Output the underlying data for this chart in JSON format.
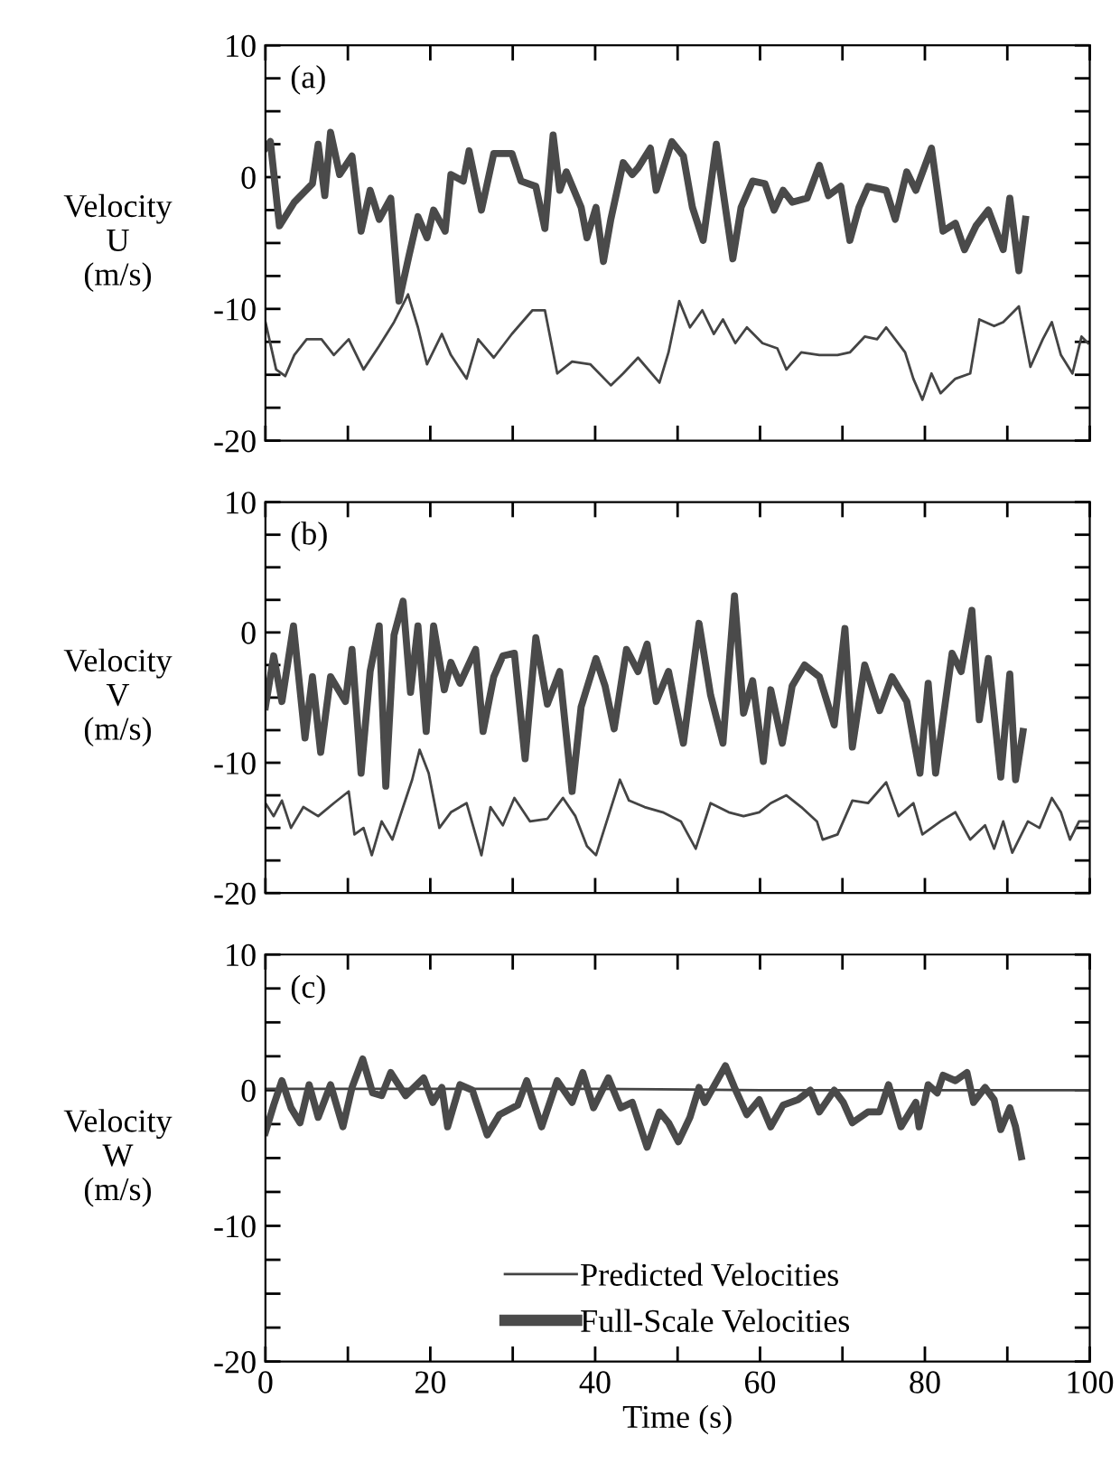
{
  "chart_data": [
    {
      "type": "line",
      "ylabel": "Velocity\nU\n(m/s)",
      "annotations": [
        "(a)"
      ],
      "xlim": [
        0,
        100
      ],
      "ylim": [
        -20,
        10
      ],
      "xticks": [
        0,
        {
          "value": 10,
          "label": null
        },
        20,
        {
          "value": 30,
          "label": null
        },
        40,
        {
          "value": 50,
          "label": null
        },
        60,
        {
          "value": 70,
          "label": null
        },
        80,
        {
          "value": 90,
          "label": null
        },
        100
      ],
      "yticks": [
        -20,
        {
          "value": -17.5,
          "label": null
        },
        {
          "value": -15,
          "label": null
        },
        {
          "value": -12.5,
          "label": null
        },
        -10,
        {
          "value": -7.5,
          "label": null
        },
        {
          "value": -5,
          "label": null
        },
        {
          "value": -2.5,
          "label": null
        },
        0,
        {
          "value": 2.5,
          "label": null
        },
        {
          "value": 5,
          "label": null
        },
        {
          "value": 7.5,
          "label": null
        },
        10
      ],
      "tick_labels": "y",
      "grid": false,
      "legend": false,
      "series": [
        {
          "color": "#444444",
          "line_style": "solid",
          "x": [
            0,
            1.3,
            2.4,
            3.5,
            5.0,
            6.8,
            8.3,
            10.1,
            11.9,
            13.8,
            15.6,
            17.3,
            18.5,
            19.6,
            21.4,
            22.5,
            24.4,
            25.8,
            27.7,
            29.9,
            32.4,
            33.9,
            35.4,
            37.2,
            39.4,
            41.9,
            43.4,
            45.2,
            47.8,
            48.9,
            50.2,
            51.5,
            53.0,
            54.4,
            55.5,
            57.0,
            58.4,
            60.3,
            62.1,
            63.2,
            65.0,
            67.2,
            69.4,
            70.9,
            72.7,
            74.2,
            75.3,
            77.6,
            78.6,
            79.7,
            80.8,
            81.9,
            83.7,
            85.5,
            86.6,
            88.4,
            89.5,
            91.4,
            92.8,
            94.3,
            95.4,
            96.5,
            97.9,
            99.0,
            99.8
          ],
          "values": [
            -11.0,
            -14.6,
            -15.1,
            -13.5,
            -12.3,
            -12.3,
            -13.5,
            -12.3,
            -14.6,
            -12.8,
            -11.0,
            -8.9,
            -11.4,
            -14.2,
            -11.9,
            -13.5,
            -15.3,
            -12.3,
            -13.7,
            -11.9,
            -10.1,
            -10.1,
            -14.9,
            -14.0,
            -14.2,
            -15.8,
            -14.9,
            -13.7,
            -15.6,
            -13.3,
            -9.4,
            -11.4,
            -10.1,
            -11.9,
            -10.8,
            -12.6,
            -11.4,
            -12.6,
            -13.0,
            -14.6,
            -13.3,
            -13.5,
            -13.5,
            -13.3,
            -12.1,
            -12.3,
            -11.4,
            -13.3,
            -15.3,
            -16.9,
            -14.9,
            -16.4,
            -15.3,
            -14.9,
            -10.8,
            -11.3,
            -11.0,
            -9.8,
            -14.4,
            -12.3,
            -11.0,
            -13.5,
            -14.9,
            -12.1,
            -12.6
          ]
        },
        {
          "color": "#4a4a4a",
          "line_style": "solid",
          "x": [
            0,
            0.6,
            1.7,
            3.5,
            5.7,
            6.4,
            7.2,
            7.9,
            9.0,
            10.5,
            11.6,
            12.7,
            13.8,
            15.2,
            16.2,
            17.4,
            18.5,
            19.6,
            20.4,
            21.8,
            22.5,
            24.0,
            24.7,
            26.2,
            27.7,
            29.9,
            31.0,
            32.8,
            33.9,
            34.9,
            35.7,
            36.5,
            38.3,
            39.0,
            40.1,
            41.0,
            41.9,
            43.4,
            44.5,
            45.2,
            46.7,
            47.4,
            49.3,
            50.7,
            51.8,
            53.1,
            54.7,
            55.5,
            56.7,
            57.7,
            59.1,
            60.6,
            61.7,
            62.8,
            63.9,
            65.7,
            67.2,
            68.3,
            69.8,
            70.9,
            72.0,
            73.1,
            75.3,
            76.4,
            77.8,
            78.9,
            80.8,
            82.2,
            83.7,
            84.8,
            86.2,
            87.7,
            89.5,
            90.3,
            91.4,
            92.2
          ],
          "values": [
            2.2,
            2.7,
            -3.7,
            -1.9,
            -0.5,
            2.5,
            -1.4,
            3.4,
            0.2,
            1.6,
            -4.1,
            -1.0,
            -3.2,
            -1.6,
            -9.4,
            -6.0,
            -3.0,
            -4.6,
            -2.5,
            -4.1,
            0.2,
            -0.3,
            2.0,
            -2.5,
            1.8,
            1.8,
            -0.3,
            -0.7,
            -3.9,
            3.2,
            -1.0,
            0.4,
            -2.3,
            -4.6,
            -2.3,
            -6.4,
            -3.2,
            1.1,
            0.2,
            0.7,
            2.2,
            -1.0,
            2.7,
            1.6,
            -2.3,
            -4.8,
            2.5,
            -1.0,
            -6.2,
            -2.3,
            -0.3,
            -0.5,
            -2.5,
            -1.0,
            -1.9,
            -1.6,
            0.9,
            -1.4,
            -0.7,
            -4.8,
            -2.3,
            -0.7,
            -1.0,
            -3.2,
            0.4,
            -1.0,
            2.2,
            -4.1,
            -3.5,
            -5.5,
            -3.7,
            -2.5,
            -5.5,
            -1.6,
            -7.1,
            -3.2
          ]
        }
      ]
    },
    {
      "type": "line",
      "ylabel": "Velocity\nV\n(m/s)",
      "annotations": [
        "(b)"
      ],
      "xlim": [
        0,
        100
      ],
      "ylim": [
        -20,
        10
      ],
      "xticks": [
        0,
        {
          "value": 10,
          "label": null
        },
        20,
        {
          "value": 30,
          "label": null
        },
        40,
        {
          "value": 50,
          "label": null
        },
        60,
        {
          "value": 70,
          "label": null
        },
        80,
        {
          "value": 90,
          "label": null
        },
        100
      ],
      "yticks": [
        -20,
        {
          "value": -17.5,
          "label": null
        },
        {
          "value": -15,
          "label": null
        },
        {
          "value": -12.5,
          "label": null
        },
        -10,
        {
          "value": -7.5,
          "label": null
        },
        {
          "value": -5,
          "label": null
        },
        {
          "value": -2.5,
          "label": null
        },
        0,
        {
          "value": 2.5,
          "label": null
        },
        {
          "value": 5,
          "label": null
        },
        {
          "value": 7.5,
          "label": null
        },
        10
      ],
      "tick_labels": "y",
      "grid": false,
      "legend": false,
      "series": [
        {
          "color": "#444444",
          "line_style": "solid",
          "x": [
            0,
            1.0,
            2.0,
            3.1,
            4.6,
            6.4,
            8.3,
            10.1,
            10.8,
            11.9,
            12.9,
            14.1,
            15.4,
            16.7,
            17.8,
            18.7,
            19.8,
            21.1,
            22.5,
            24.4,
            26.2,
            27.3,
            28.8,
            30.2,
            32.1,
            34.2,
            36.1,
            37.6,
            39.0,
            40.1,
            41.6,
            43.0,
            44.1,
            46.0,
            48.2,
            50.4,
            52.2,
            54.0,
            56.2,
            58.0,
            59.9,
            61.3,
            63.2,
            65.0,
            66.9,
            67.6,
            69.4,
            71.2,
            73.1,
            75.3,
            76.8,
            78.6,
            79.7,
            81.9,
            83.7,
            85.5,
            87.3,
            88.4,
            89.5,
            90.6,
            92.5,
            93.9,
            95.4,
            96.5,
            97.6,
            98.7,
            99.8
          ],
          "values": [
            -13.1,
            -14.1,
            -12.9,
            -15.0,
            -13.4,
            -14.1,
            -13.1,
            -12.2,
            -15.5,
            -15.0,
            -17.1,
            -14.5,
            -15.9,
            -13.4,
            -11.3,
            -9.0,
            -10.8,
            -15.0,
            -13.8,
            -13.1,
            -17.1,
            -13.4,
            -14.8,
            -12.7,
            -14.5,
            -14.3,
            -12.7,
            -14.1,
            -16.4,
            -17.1,
            -14.1,
            -11.3,
            -12.9,
            -13.4,
            -13.8,
            -14.5,
            -16.6,
            -13.1,
            -13.8,
            -14.1,
            -13.8,
            -13.1,
            -12.5,
            -13.4,
            -14.5,
            -15.9,
            -15.5,
            -12.9,
            -13.1,
            -11.5,
            -14.1,
            -13.1,
            -15.5,
            -14.5,
            -13.8,
            -15.9,
            -14.8,
            -16.6,
            -14.5,
            -16.9,
            -14.5,
            -15.0,
            -12.7,
            -13.8,
            -15.9,
            -14.5,
            -14.5
          ]
        },
        {
          "color": "#4a4a4a",
          "line_style": "solid",
          "x": [
            0,
            1.0,
            2.0,
            3.4,
            4.8,
            5.7,
            6.7,
            7.9,
            9.7,
            10.5,
            11.6,
            12.7,
            13.8,
            14.6,
            15.6,
            16.7,
            17.6,
            18.5,
            19.5,
            20.4,
            21.7,
            22.5,
            23.6,
            25.5,
            26.4,
            27.7,
            28.8,
            30.2,
            31.5,
            32.8,
            34.2,
            35.7,
            37.2,
            38.3,
            40.1,
            41.2,
            42.3,
            43.8,
            45.2,
            46.3,
            47.4,
            48.9,
            50.7,
            52.6,
            54.0,
            55.5,
            56.9,
            58.0,
            59.1,
            60.4,
            61.3,
            62.7,
            63.9,
            65.4,
            67.2,
            69.0,
            70.3,
            71.2,
            72.7,
            74.5,
            76.0,
            77.8,
            79.4,
            80.4,
            81.3,
            83.3,
            84.4,
            85.7,
            86.6,
            87.7,
            89.2,
            90.3,
            91.0,
            91.9
          ],
          "values": [
            -5.7,
            -1.8,
            -5.3,
            0.5,
            -8.1,
            -3.4,
            -9.2,
            -3.4,
            -5.3,
            -1.3,
            -10.8,
            -3.0,
            0.5,
            -11.8,
            -0.2,
            2.4,
            -4.6,
            0.5,
            -7.6,
            0.5,
            -4.4,
            -2.3,
            -3.9,
            -1.3,
            -7.6,
            -3.4,
            -1.8,
            -1.6,
            -9.7,
            -0.4,
            -5.5,
            -3.0,
            -12.2,
            -5.7,
            -2.0,
            -4.1,
            -7.4,
            -1.3,
            -3.0,
            -0.9,
            -5.3,
            -3.0,
            -8.5,
            0.7,
            -4.8,
            -8.5,
            2.8,
            -6.2,
            -3.7,
            -9.9,
            -4.4,
            -8.5,
            -4.1,
            -2.5,
            -3.4,
            -7.1,
            0.3,
            -8.8,
            -2.5,
            -6.0,
            -3.4,
            -5.3,
            -10.8,
            -3.9,
            -10.8,
            -1.6,
            -3.0,
            1.7,
            -6.7,
            -2.0,
            -11.1,
            -3.2,
            -11.3,
            -7.6
          ]
        }
      ]
    },
    {
      "type": "line",
      "ylabel": "Velocity\nW\n(m/s)",
      "xlabel": "Time (s)",
      "annotations": [
        "(c)"
      ],
      "xlim": [
        0,
        100
      ],
      "ylim": [
        -20,
        10
      ],
      "xticks": [
        0,
        {
          "value": 10,
          "label": null
        },
        20,
        {
          "value": 30,
          "label": null
        },
        40,
        {
          "value": 50,
          "label": null
        },
        60,
        {
          "value": 70,
          "label": null
        },
        80,
        {
          "value": 90,
          "label": null
        },
        100
      ],
      "yticks": [
        -20,
        {
          "value": -17.5,
          "label": null
        },
        {
          "value": -15,
          "label": null
        },
        {
          "value": -12.5,
          "label": null
        },
        -10,
        {
          "value": -7.5,
          "label": null
        },
        {
          "value": -5,
          "label": null
        },
        {
          "value": -2.5,
          "label": null
        },
        0,
        {
          "value": 2.5,
          "label": null
        },
        {
          "value": 5,
          "label": null
        },
        {
          "value": 7.5,
          "label": null
        },
        10
      ],
      "grid": false,
      "legend": "bottom",
      "series": [
        {
          "name": "Predicted Velocities",
          "color": "#444444",
          "line_style": "solid",
          "x": [
            0,
            20,
            40,
            60,
            80,
            100
          ],
          "values": [
            0.1,
            0.1,
            0.1,
            0,
            0,
            0
          ]
        },
        {
          "name": "Full-Scale Velocities",
          "color": "#4a4a4a",
          "line_style": "solid",
          "x": [
            0,
            1.0,
            2.0,
            3.1,
            4.2,
            5.3,
            6.4,
            7.9,
            9.4,
            10.5,
            11.8,
            13.0,
            14.1,
            15.2,
            17.0,
            19.2,
            20.3,
            21.4,
            22.1,
            23.6,
            25.1,
            26.9,
            28.4,
            30.6,
            31.7,
            33.5,
            35.4,
            37.2,
            38.5,
            39.8,
            41.6,
            43.1,
            44.5,
            46.3,
            47.8,
            48.9,
            50.1,
            51.5,
            52.6,
            53.3,
            55.8,
            56.9,
            58.4,
            59.9,
            61.3,
            62.8,
            64.6,
            66.1,
            67.2,
            69.0,
            70.1,
            71.2,
            73.1,
            74.5,
            75.6,
            77.1,
            78.9,
            79.3,
            80.4,
            81.5,
            82.2,
            83.7,
            85.1,
            85.9,
            87.3,
            88.4,
            89.2,
            90.3,
            91.0,
            91.7
          ],
          "values": [
            -3.1,
            -1.1,
            0.7,
            -1.3,
            -2.4,
            0.4,
            -2.0,
            0.4,
            -2.7,
            0.2,
            2.3,
            -0.2,
            -0.4,
            1.3,
            -0.4,
            0.9,
            -0.9,
            0.2,
            -2.7,
            0.4,
            0,
            -3.3,
            -1.8,
            -1.1,
            0.7,
            -2.7,
            0.7,
            -0.9,
            1.3,
            -1.3,
            0.9,
            -1.3,
            -0.9,
            -4.2,
            -1.6,
            -2.4,
            -3.8,
            -2.0,
            0.2,
            -0.9,
            1.8,
            0.2,
            -1.8,
            -0.7,
            -2.7,
            -1.1,
            -0.7,
            0,
            -1.6,
            0,
            -0.9,
            -2.4,
            -1.6,
            -1.6,
            0.4,
            -2.7,
            -0.9,
            -2.7,
            0.4,
            -0.2,
            1.1,
            0.7,
            1.3,
            -0.9,
            0.2,
            -0.7,
            -2.9,
            -1.3,
            -2.7,
            -4.9
          ]
        }
      ]
    }
  ]
}
